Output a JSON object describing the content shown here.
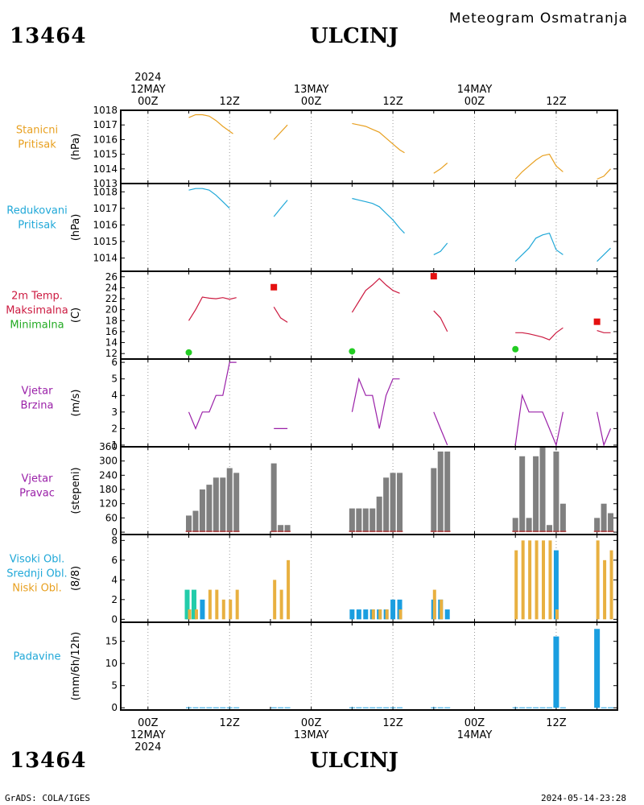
{
  "header": {
    "station_code": "13464",
    "station_name": "ULCINJ",
    "product": "Meteogram Osmatranja"
  },
  "footer": {
    "station_code": "13464",
    "station_name": "ULCINJ",
    "software": "GrADS: COLA/IGES",
    "timestamp": "2024-05-14-23:28"
  },
  "time_axis": {
    "top_labels": [
      {
        "lines": [
          "2024",
          "12MAY",
          "00Z"
        ],
        "hour": 0
      },
      {
        "lines": [
          "12Z"
        ],
        "hour": 12
      },
      {
        "lines": [
          "13MAY",
          "00Z"
        ],
        "hour": 24
      },
      {
        "lines": [
          "12Z"
        ],
        "hour": 36
      },
      {
        "lines": [
          "14MAY",
          "00Z"
        ],
        "hour": 48
      },
      {
        "lines": [
          "12Z"
        ],
        "hour": 60
      }
    ],
    "bottom_labels": [
      {
        "lines": [
          "00Z",
          "12MAY",
          "2024"
        ],
        "hour": 0
      },
      {
        "lines": [
          "12Z"
        ],
        "hour": 12
      },
      {
        "lines": [
          "00Z",
          "13MAY"
        ],
        "hour": 24
      },
      {
        "lines": [
          "12Z"
        ],
        "hour": 36
      },
      {
        "lines": [
          "00Z",
          "14MAY"
        ],
        "hour": 48
      },
      {
        "lines": [
          "12Z"
        ],
        "hour": 60
      }
    ]
  },
  "chart_data": [
    {
      "type": "line",
      "id": "station_pressure",
      "left_label": [
        {
          "text": "Stanicni",
          "color": "#e8a020"
        },
        {
          "text": "Pritisak",
          "color": "#e8a020"
        }
      ],
      "ylabel": "(hPa)",
      "ylim": [
        1013,
        1018
      ],
      "yticks": [
        1013,
        1014,
        1015,
        1016,
        1017,
        1018
      ],
      "color": "#e8a020",
      "segments": [
        [
          [
            6,
            1017.5
          ],
          [
            7,
            1017.7
          ],
          [
            8,
            1017.7
          ],
          [
            9,
            1017.6
          ],
          [
            10,
            1017.3
          ],
          [
            11,
            1016.9
          ],
          [
            12.5,
            1016.4
          ]
        ],
        [
          [
            18.5,
            1016.0
          ],
          [
            20.5,
            1017.0
          ]
        ],
        [
          [
            30,
            1017.1
          ],
          [
            31,
            1017.0
          ],
          [
            32,
            1016.9
          ],
          [
            33,
            1016.7
          ],
          [
            34,
            1016.5
          ],
          [
            35,
            1016.1
          ],
          [
            36,
            1015.7
          ],
          [
            37,
            1015.3
          ],
          [
            37.7,
            1015.1
          ]
        ],
        [
          [
            42,
            1013.7
          ],
          [
            43,
            1014.0
          ],
          [
            44,
            1014.4
          ]
        ],
        [
          [
            54,
            1013.3
          ],
          [
            55,
            1013.8
          ],
          [
            56,
            1014.2
          ],
          [
            57,
            1014.6
          ],
          [
            58,
            1014.9
          ],
          [
            59,
            1015.0
          ],
          [
            60,
            1014.2
          ],
          [
            61,
            1013.8
          ]
        ],
        [
          [
            66,
            1013.3
          ],
          [
            67,
            1013.5
          ],
          [
            68,
            1014.0
          ]
        ]
      ]
    },
    {
      "type": "line",
      "id": "reduced_pressure",
      "left_label": [
        {
          "text": "Redukovani",
          "color": "#20a8d8"
        },
        {
          "text": "Pritisak",
          "color": "#20a8d8"
        }
      ],
      "ylabel": "(hPa)",
      "ylim": [
        1013.2,
        1018.5
      ],
      "yticks": [
        1014,
        1015,
        1016,
        1017,
        1018
      ],
      "color": "#20a8d8",
      "segments": [
        [
          [
            6,
            1018.1
          ],
          [
            7,
            1018.2
          ],
          [
            8,
            1018.2
          ],
          [
            9,
            1018.1
          ],
          [
            10,
            1017.8
          ],
          [
            11,
            1017.4
          ],
          [
            12,
            1017.0
          ]
        ],
        [
          [
            18.5,
            1016.5
          ],
          [
            19.5,
            1017.0
          ],
          [
            20.5,
            1017.5
          ]
        ],
        [
          [
            30,
            1017.6
          ],
          [
            31,
            1017.5
          ],
          [
            32,
            1017.4
          ],
          [
            33,
            1017.3
          ],
          [
            34,
            1017.1
          ],
          [
            35,
            1016.7
          ],
          [
            36,
            1016.3
          ],
          [
            37,
            1015.8
          ],
          [
            37.7,
            1015.5
          ]
        ],
        [
          [
            42,
            1014.2
          ],
          [
            43,
            1014.4
          ],
          [
            44,
            1014.9
          ]
        ],
        [
          [
            54,
            1013.8
          ],
          [
            55,
            1014.2
          ],
          [
            56,
            1014.6
          ],
          [
            57,
            1015.2
          ],
          [
            58,
            1015.4
          ],
          [
            59,
            1015.5
          ],
          [
            60,
            1014.5
          ],
          [
            61,
            1014.2
          ]
        ],
        [
          [
            66,
            1013.8
          ],
          [
            67,
            1014.2
          ],
          [
            68,
            1014.6
          ]
        ]
      ]
    },
    {
      "type": "line",
      "id": "temperature",
      "left_label": [
        {
          "text": "2m Temp.",
          "color": "#cc1a40"
        },
        {
          "text": "Maksimalna",
          "color": "#cc1a40"
        },
        {
          "text": "Minimalna",
          "color": "#22aa22"
        }
      ],
      "ylabel": "(C)",
      "ylim": [
        11,
        27
      ],
      "yticks": [
        12,
        14,
        16,
        18,
        20,
        22,
        24,
        26
      ],
      "color": "#cc1a40",
      "segments": [
        [
          [
            6,
            18
          ],
          [
            7,
            20
          ],
          [
            8,
            22.3
          ],
          [
            9,
            22.1
          ],
          [
            10,
            22.0
          ],
          [
            11,
            22.2
          ],
          [
            12,
            21.9
          ],
          [
            13,
            22.2
          ]
        ],
        [
          [
            18.5,
            20.5
          ],
          [
            19.5,
            18.5
          ],
          [
            20.5,
            17.7
          ]
        ],
        [
          [
            30,
            19.5
          ],
          [
            31,
            21.5
          ],
          [
            32,
            23.5
          ],
          [
            33,
            24.5
          ],
          [
            34,
            25.7
          ],
          [
            35,
            24.5
          ],
          [
            36,
            23.5
          ],
          [
            37,
            23.0
          ]
        ],
        [
          [
            42,
            19.8
          ],
          [
            43,
            18.5
          ],
          [
            44,
            16.0
          ]
        ],
        [
          [
            54,
            15.8
          ],
          [
            55,
            15.8
          ],
          [
            56,
            15.6
          ],
          [
            57,
            15.3
          ],
          [
            58,
            15.0
          ],
          [
            59,
            14.5
          ],
          [
            60,
            15.8
          ],
          [
            61,
            16.7
          ]
        ],
        [
          [
            66,
            16.2
          ],
          [
            67,
            15.8
          ],
          [
            68,
            15.8
          ]
        ]
      ],
      "max_markers": {
        "color": "#e41010",
        "points": [
          [
            18.5,
            24.1
          ],
          [
            42,
            26.1
          ],
          [
            66,
            17.8
          ]
        ]
      },
      "min_markers": {
        "color": "#22cc22",
        "points": [
          [
            6,
            12.2
          ],
          [
            30,
            12.4
          ],
          [
            54,
            12.8
          ]
        ]
      }
    },
    {
      "type": "line",
      "id": "wind_speed",
      "left_label": [
        {
          "text": "Vjetar",
          "color": "#9a20a8"
        },
        {
          "text": "Brzina",
          "color": "#9a20a8"
        }
      ],
      "ylabel": "(m/s)",
      "ylim": [
        0.9,
        6.2
      ],
      "yticks": [
        1,
        2,
        3,
        4,
        5,
        6
      ],
      "color": "#9a20a8",
      "segments": [
        [
          [
            6,
            3
          ],
          [
            7,
            2
          ],
          [
            8,
            3
          ],
          [
            9,
            3
          ],
          [
            10,
            4
          ],
          [
            11,
            4
          ],
          [
            12,
            6
          ],
          [
            13,
            6
          ]
        ],
        [
          [
            18.5,
            2
          ],
          [
            20.5,
            2
          ]
        ],
        [
          [
            30,
            3
          ],
          [
            31,
            5
          ],
          [
            32,
            4
          ],
          [
            33,
            4
          ],
          [
            34,
            2
          ],
          [
            35,
            4
          ],
          [
            36,
            5
          ],
          [
            37,
            5
          ]
        ],
        [
          [
            42,
            3
          ],
          [
            43,
            2
          ],
          [
            44,
            1
          ]
        ],
        [
          [
            54,
            1
          ],
          [
            55,
            4
          ],
          [
            56,
            3
          ],
          [
            57,
            3
          ],
          [
            58,
            3
          ],
          [
            59,
            2
          ],
          [
            60,
            1
          ],
          [
            61,
            3
          ]
        ],
        [
          [
            66,
            3
          ],
          [
            67,
            1
          ],
          [
            68,
            2
          ]
        ]
      ]
    },
    {
      "type": "bar",
      "id": "wind_direction",
      "left_label": [
        {
          "text": "Vjetar",
          "color": "#9a20a8"
        },
        {
          "text": "Pravac",
          "color": "#9a20a8"
        }
      ],
      "ylabel": "(stepeni)",
      "ylim": [
        -10,
        360
      ],
      "yticks": [
        0,
        60,
        120,
        180,
        240,
        300,
        360
      ],
      "color": "#808080",
      "x": [
        6,
        7,
        8,
        9,
        10,
        11,
        12,
        13,
        18.5,
        19.5,
        20.5,
        30,
        31,
        32,
        33,
        34,
        35,
        36,
        37,
        42,
        43,
        44,
        54,
        55,
        56,
        57,
        58,
        59,
        60,
        61,
        66,
        67,
        68
      ],
      "values": [
        70,
        90,
        180,
        200,
        230,
        230,
        270,
        250,
        290,
        30,
        30,
        100,
        100,
        100,
        100,
        150,
        230,
        250,
        250,
        270,
        340,
        340,
        60,
        320,
        60,
        320,
        360,
        30,
        340,
        120,
        60,
        120,
        80
      ]
    },
    {
      "type": "bar",
      "id": "cloud_cover",
      "left_label": [
        {
          "text": "Visoki Obl.",
          "color": "#20a8d8"
        },
        {
          "text": "Srednji Obl.",
          "color": "#20a8d8"
        },
        {
          "text": "Niski Obl.",
          "color": "#e8a020"
        }
      ],
      "ylabel": "(8/8)",
      "ylim": [
        -0.3,
        8.6
      ],
      "yticks": [
        0,
        2,
        4,
        6,
        8
      ],
      "series": [
        {
          "name": "Visoki Obl.",
          "color": "#1a9ee0",
          "x": [
            6,
            8,
            30,
            31,
            32,
            33,
            34,
            35,
            36,
            37,
            42,
            43,
            44,
            60
          ],
          "values": [
            1,
            2,
            1,
            1,
            1,
            1,
            1,
            1,
            2,
            2,
            2,
            2,
            1,
            7
          ]
        },
        {
          "name": "Srednji Obl.",
          "color": "#22ccaa",
          "x": [
            6,
            7
          ],
          "values": [
            3,
            3
          ]
        },
        {
          "name": "Niski Obl.",
          "color": "#e8b040",
          "x": [
            6,
            7,
            9,
            10,
            11,
            12,
            13,
            18.5,
            19.5,
            20.5,
            33,
            34,
            35,
            37,
            42,
            43,
            54,
            55,
            56,
            57,
            58,
            59,
            60,
            66,
            67,
            68
          ],
          "values": [
            1,
            1,
            3,
            3,
            2,
            2,
            3,
            4,
            3,
            6,
            1,
            1,
            1,
            1,
            3,
            2,
            7,
            8,
            8,
            8,
            8,
            8,
            1,
            8,
            6,
            7
          ]
        }
      ]
    },
    {
      "type": "bar",
      "id": "precipitation",
      "left_label": [
        {
          "text": "Padavine",
          "color": "#20a8d8"
        }
      ],
      "ylabel": "(mm/6h/12h)",
      "ylim": [
        -0.5,
        19.3
      ],
      "yticks": [
        0,
        5,
        10,
        15
      ],
      "color": "#1a9ee0",
      "x": [
        6,
        7,
        8,
        9,
        10,
        11,
        12,
        13,
        18.5,
        19.5,
        20.5,
        30,
        31,
        32,
        33,
        34,
        35,
        36,
        37,
        42,
        43,
        44,
        54,
        55,
        56,
        57,
        58,
        59,
        60,
        61,
        66,
        67,
        68
      ],
      "values": [
        0.1,
        0.1,
        0.1,
        0.1,
        0.1,
        0.1,
        0.1,
        0.1,
        0.1,
        0.1,
        0.1,
        0.1,
        0.1,
        0.1,
        0.1,
        0.1,
        0.1,
        0.1,
        0.1,
        0.1,
        0.1,
        0.1,
        0.1,
        0.1,
        0.1,
        0.1,
        0.1,
        0.1,
        16.1,
        0.1,
        17.8,
        0.1,
        0.1
      ]
    }
  ]
}
